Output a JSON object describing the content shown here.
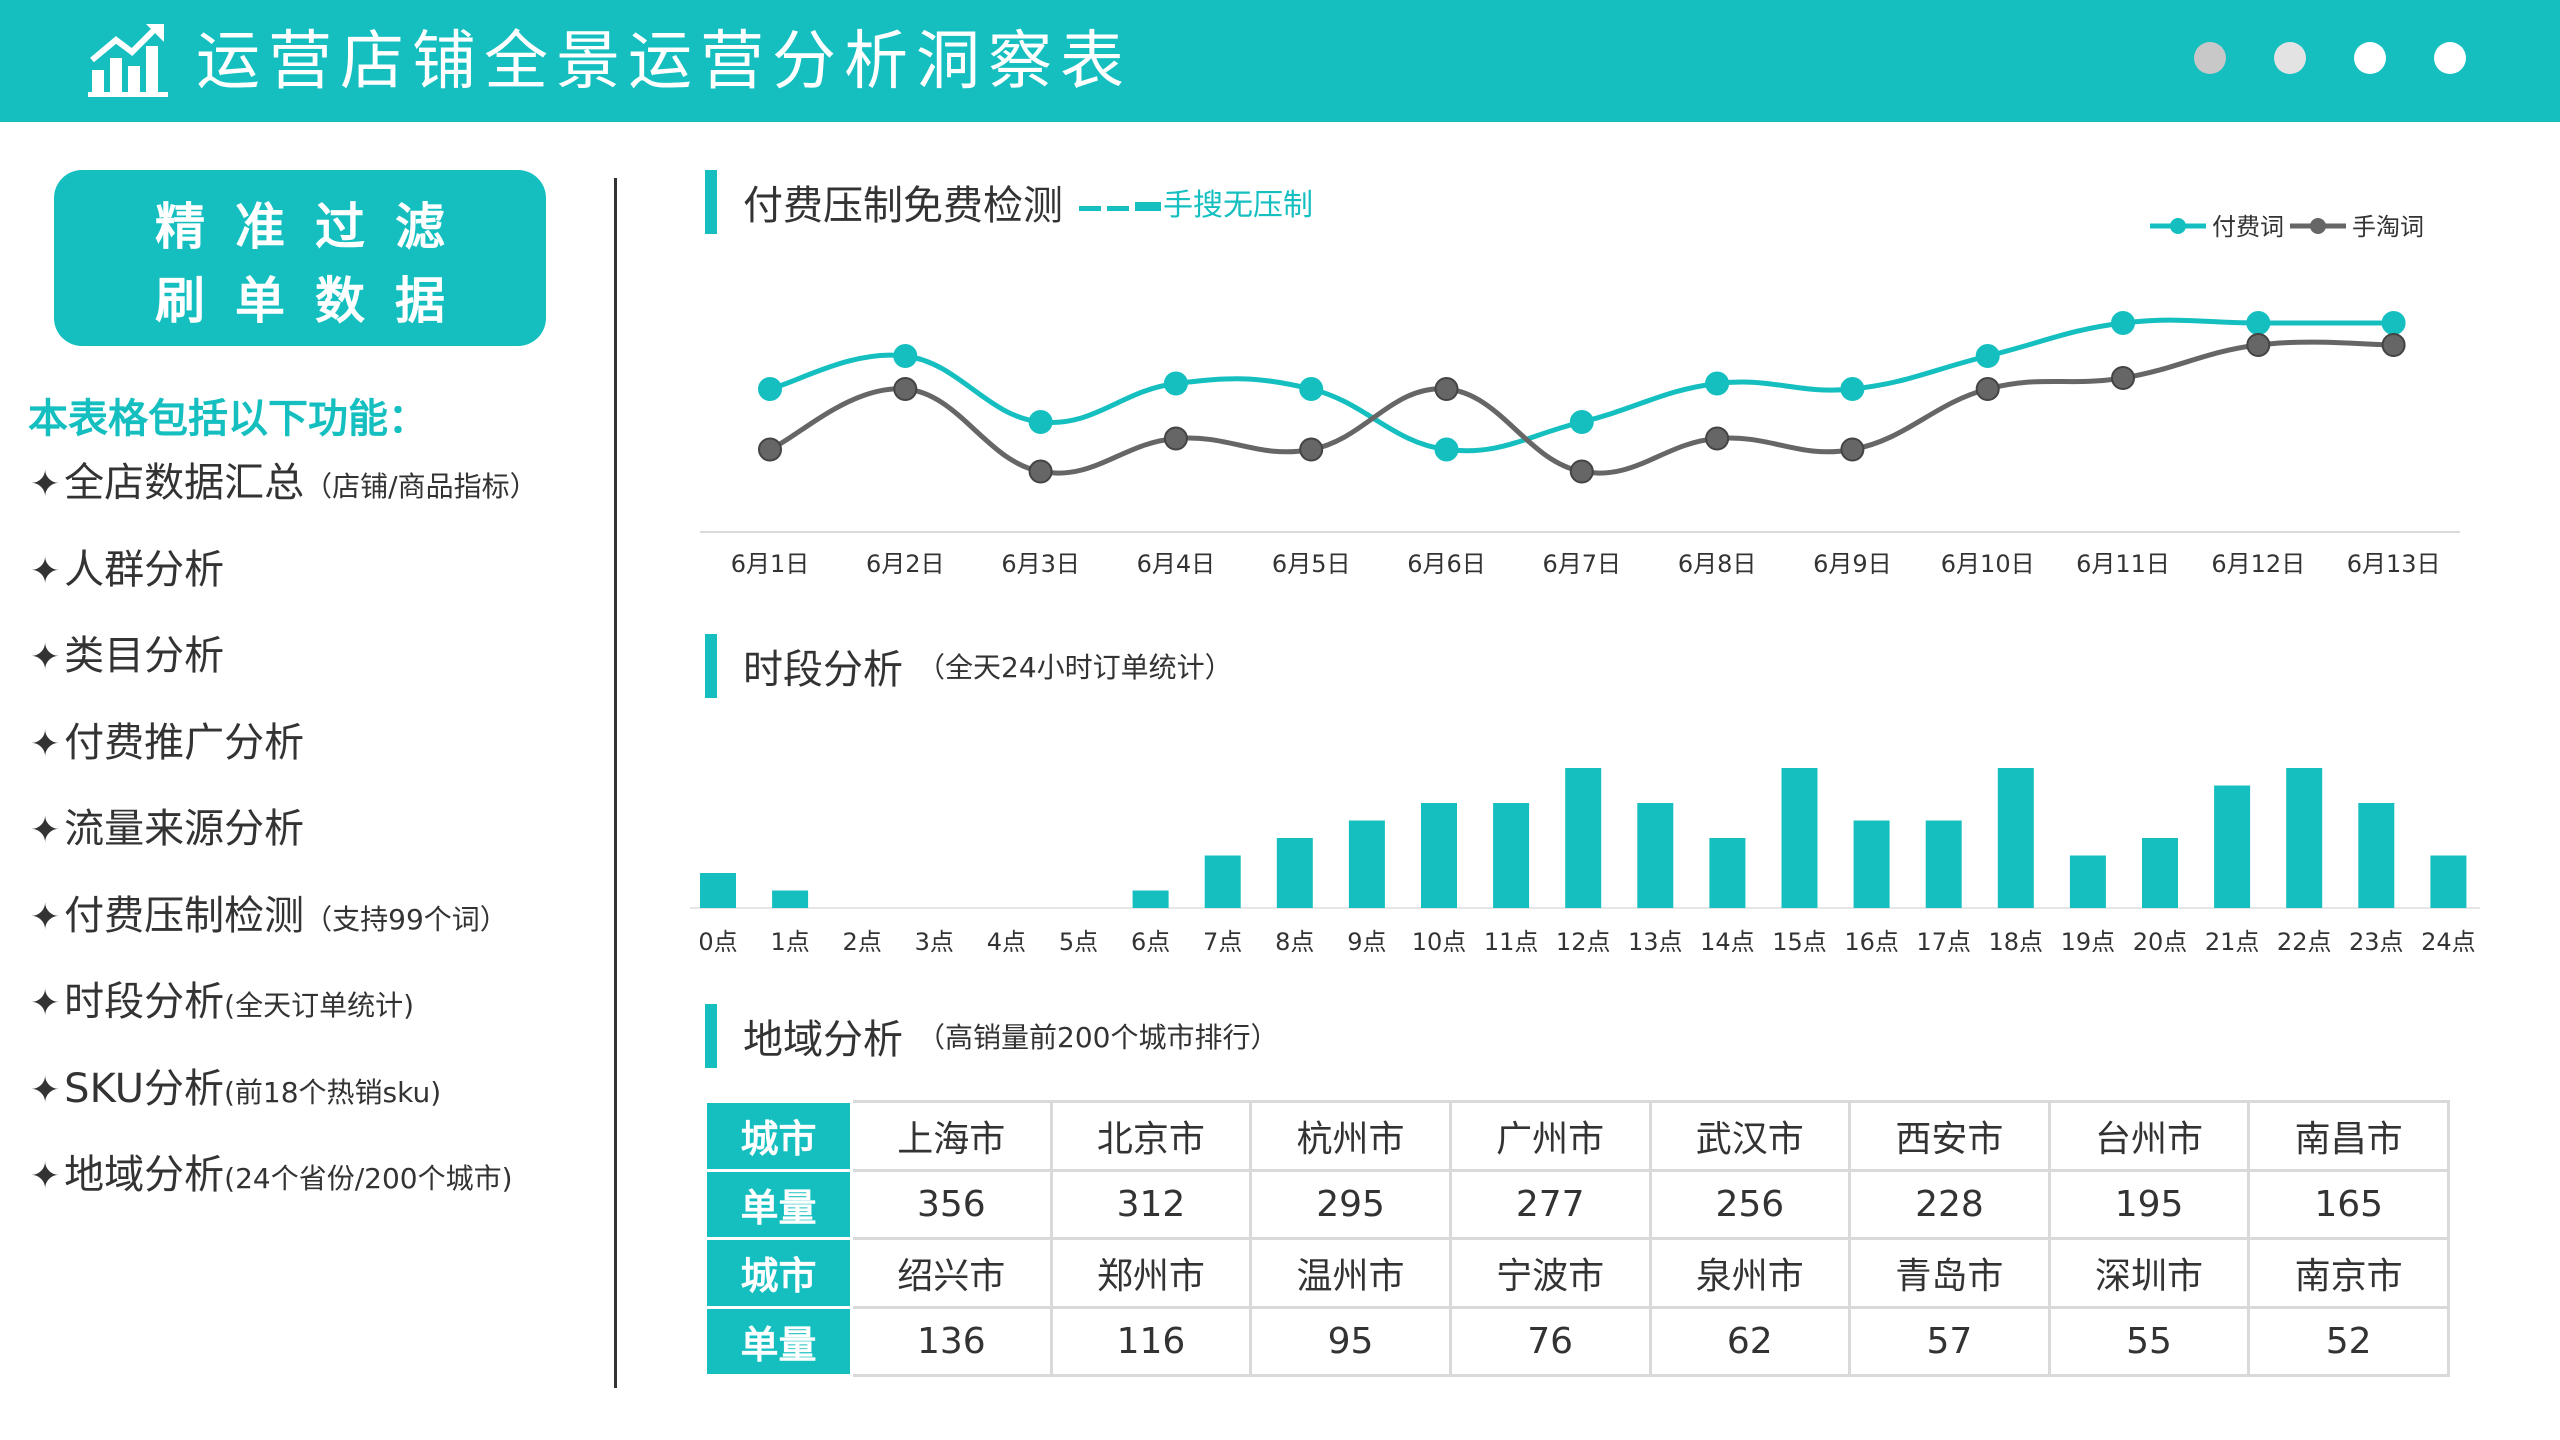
{
  "header": {
    "title": "运营店铺全景运营分析洞察表",
    "icon": "bar-chart-trend-icon",
    "dot_colors": [
      "#c8c8c8",
      "#e3e3e3",
      "#ffffff",
      "#ffffff"
    ]
  },
  "left_panel": {
    "badge_line1": "精准过滤",
    "badge_line2": "刷单数据",
    "features_title": "本表格包括以下功能：",
    "features": [
      {
        "label": "全店数据汇总",
        "note": "（店铺/商品指标）"
      },
      {
        "label": "人群分析",
        "note": ""
      },
      {
        "label": "类目分析",
        "note": ""
      },
      {
        "label": "付费推广分析",
        "note": ""
      },
      {
        "label": "流量来源分析",
        "note": ""
      },
      {
        "label": "付费压制检测",
        "note": "（支持99个词）"
      },
      {
        "label": "时段分析",
        "note": "(全天订单统计)"
      },
      {
        "label": "SKU分析",
        "note": "(前18个热销sku)"
      },
      {
        "label": "地域分析",
        "note": "(24个省份/200个城市)"
      }
    ]
  },
  "sections": {
    "paid": {
      "title": "付费压制免费检测",
      "highlight": "手搜无压制"
    },
    "hourly": {
      "title": "时段分析",
      "note": "（全天24小时订单统计）"
    },
    "region": {
      "title": "地域分析",
      "note": "（高销量前200个城市排行）"
    }
  },
  "colors": {
    "accent": "#15bfc0",
    "series2": "#666666"
  },
  "chart_data": [
    {
      "type": "line",
      "title": "付费压制免费检测",
      "categories": [
        "6月1日",
        "6月2日",
        "6月3日",
        "6月4日",
        "6月5日",
        "6月6日",
        "6月7日",
        "6月8日",
        "6月9日",
        "6月10日",
        "6月11日",
        "6月12日",
        "6月13日"
      ],
      "series": [
        {
          "name": "付费词",
          "color": "#15bfc0",
          "values": [
            62,
            68,
            56,
            63,
            62,
            51,
            56,
            63,
            62,
            68,
            74,
            74,
            74
          ]
        },
        {
          "name": "手淘词",
          "color": "#666666",
          "values": [
            51,
            62,
            47,
            53,
            51,
            62,
            47,
            53,
            51,
            62,
            64,
            70,
            70
          ]
        }
      ],
      "ylim": [
        20,
        100
      ],
      "legend": "top-right",
      "grid": false,
      "smooth": true
    },
    {
      "type": "bar",
      "title": "时段分析",
      "categories": [
        "0点",
        "1点",
        "2点",
        "3点",
        "4点",
        "5点",
        "6点",
        "7点",
        "8点",
        "9点",
        "10点",
        "11点",
        "12点",
        "13点",
        "14点",
        "15点",
        "16点",
        "17点",
        "18点",
        "19点",
        "20点",
        "21点",
        "22点",
        "23点",
        "24点"
      ],
      "values": [
        2,
        1,
        0,
        0,
        0,
        0,
        1,
        3,
        4,
        5,
        6,
        6,
        8,
        6,
        4,
        8,
        5,
        5,
        8,
        3,
        4,
        7,
        8,
        6,
        3
      ],
      "ylim": [
        0,
        8
      ],
      "grid": false,
      "color": "#15bfc0"
    },
    {
      "type": "table",
      "title": "地域分析",
      "row_headers": [
        "城市",
        "单量"
      ],
      "rows": [
        {
          "cities": [
            "上海市",
            "北京市",
            "杭州市",
            "广州市",
            "武汉市",
            "西安市",
            "台州市",
            "南昌市"
          ],
          "orders": [
            356,
            312,
            295,
            277,
            256,
            228,
            195,
            165
          ]
        },
        {
          "cities": [
            "绍兴市",
            "郑州市",
            "温州市",
            "宁波市",
            "泉州市",
            "青岛市",
            "深圳市",
            "南京市"
          ],
          "orders": [
            136,
            116,
            95,
            76,
            62,
            57,
            55,
            52
          ]
        }
      ]
    }
  ]
}
